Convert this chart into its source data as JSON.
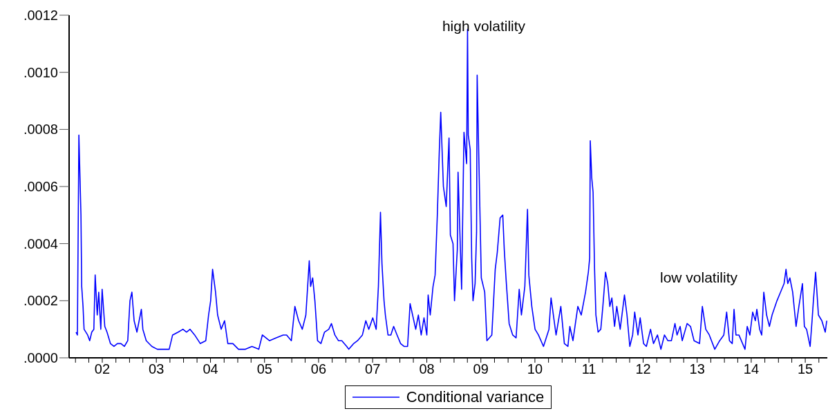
{
  "chart_data": {
    "type": "line",
    "legend": "bottom",
    "annotations": [
      "high volatility",
      "low volatility"
    ],
    "xlim": [
      "2001-11-19",
      "2015-11-27"
    ],
    "xticks": [
      {
        "value": "2002-01-01",
        "label": null
      },
      {
        "value": "2002-04-01",
        "label": null
      },
      {
        "value": "2002-07-01",
        "label": "02"
      },
      {
        "value": "2002-10-01",
        "label": null
      },
      {
        "value": "2003-01-01",
        "label": null
      },
      {
        "value": "2003-04-01",
        "label": null
      },
      {
        "value": "2003-07-01",
        "label": "03"
      },
      {
        "value": "2003-10-01",
        "label": null
      },
      {
        "value": "2004-01-01",
        "label": null
      },
      {
        "value": "2004-04-01",
        "label": null
      },
      {
        "value": "2004-07-01",
        "label": "04"
      },
      {
        "value": "2004-10-01",
        "label": null
      },
      {
        "value": "2005-01-01",
        "label": null
      },
      {
        "value": "2005-04-01",
        "label": null
      },
      {
        "value": "2005-07-01",
        "label": "05"
      },
      {
        "value": "2005-10-01",
        "label": null
      },
      {
        "value": "2006-01-01",
        "label": null
      },
      {
        "value": "2006-04-01",
        "label": null
      },
      {
        "value": "2006-07-01",
        "label": "06"
      },
      {
        "value": "2006-10-01",
        "label": null
      },
      {
        "value": "2007-01-01",
        "label": null
      },
      {
        "value": "2007-04-01",
        "label": null
      },
      {
        "value": "2007-07-01",
        "label": "07"
      },
      {
        "value": "2007-10-01",
        "label": null
      },
      {
        "value": "2008-01-01",
        "label": null
      },
      {
        "value": "2008-04-01",
        "label": null
      },
      {
        "value": "2008-07-01",
        "label": "08"
      },
      {
        "value": "2008-10-01",
        "label": null
      },
      {
        "value": "2009-01-01",
        "label": null
      },
      {
        "value": "2009-04-01",
        "label": null
      },
      {
        "value": "2009-07-01",
        "label": "09"
      },
      {
        "value": "2009-10-01",
        "label": null
      },
      {
        "value": "2010-01-01",
        "label": null
      },
      {
        "value": "2010-04-01",
        "label": null
      },
      {
        "value": "2010-07-01",
        "label": "10"
      },
      {
        "value": "2010-10-01",
        "label": null
      },
      {
        "value": "2011-01-01",
        "label": null
      },
      {
        "value": "2011-04-01",
        "label": null
      },
      {
        "value": "2011-07-01",
        "label": "11"
      },
      {
        "value": "2011-10-01",
        "label": null
      },
      {
        "value": "2012-01-01",
        "label": null
      },
      {
        "value": "2012-04-01",
        "label": null
      },
      {
        "value": "2012-07-01",
        "label": "12"
      },
      {
        "value": "2012-10-01",
        "label": null
      },
      {
        "value": "2013-01-01",
        "label": null
      },
      {
        "value": "2013-04-01",
        "label": null
      },
      {
        "value": "2013-07-01",
        "label": "13"
      },
      {
        "value": "2013-10-01",
        "label": null
      },
      {
        "value": "2014-01-01",
        "label": null
      },
      {
        "value": "2014-04-01",
        "label": null
      },
      {
        "value": "2014-07-01",
        "label": "14"
      },
      {
        "value": "2014-10-01",
        "label": null
      },
      {
        "value": "2015-01-01",
        "label": null
      },
      {
        "value": "2015-04-01",
        "label": null
      },
      {
        "value": "2015-07-01",
        "label": "15"
      },
      {
        "value": "2015-10-01",
        "label": null
      }
    ],
    "ylim": [
      0,
      0.0012
    ],
    "yticks": [
      {
        "value": 0,
        "label": ".0000"
      },
      {
        "value": 0.0002,
        "label": ".0002"
      },
      {
        "value": 0.0004,
        "label": ".0004"
      },
      {
        "value": 0.0006,
        "label": ".0006"
      },
      {
        "value": 0.0008,
        "label": ".0008"
      },
      {
        "value": 0.001,
        "label": ".0010"
      },
      {
        "value": 0.0012,
        "label": ".0012"
      }
    ],
    "series": [
      {
        "name": "Conditional variance",
        "color": "#0000ff",
        "x": [
          "2002-01-05",
          "2002-01-14",
          "2002-01-24",
          "2002-02-07",
          "2002-02-12",
          "2002-02-21",
          "2002-02-28",
          "2002-03-24",
          "2002-04-07",
          "2002-04-21",
          "2002-05-05",
          "2002-05-14",
          "2002-05-28",
          "2002-06-07",
          "2002-06-21",
          "2002-06-30",
          "2002-07-18",
          "2002-08-02",
          "2002-08-25",
          "2002-09-18",
          "2002-10-11",
          "2002-11-04",
          "2002-11-27",
          "2002-12-20",
          "2003-01-04",
          "2003-01-17",
          "2003-02-01",
          "2003-02-20",
          "2003-03-22",
          "2003-04-01",
          "2003-04-24",
          "2003-06-01",
          "2003-07-08",
          "2003-08-10",
          "2003-09-26",
          "2003-10-19",
          "2003-11-26",
          "2003-12-28",
          "2004-01-21",
          "2004-02-14",
          "2004-03-16",
          "2004-04-23",
          "2004-05-30",
          "2004-06-18",
          "2004-07-02",
          "2004-07-15",
          "2004-08-04",
          "2004-08-18",
          "2004-09-11",
          "2004-10-04",
          "2004-10-26",
          "2004-11-29",
          "2005-01-06",
          "2005-02-22",
          "2005-04-07",
          "2005-05-23",
          "2005-06-16",
          "2005-08-03",
          "2005-09-18",
          "2005-11-04",
          "2005-11-27",
          "2005-12-29",
          "2006-01-22",
          "2006-02-16",
          "2006-03-13",
          "2006-04-06",
          "2006-04-29",
          "2006-05-08",
          "2006-05-22",
          "2006-06-06",
          "2006-06-15",
          "2006-06-24",
          "2006-07-17",
          "2006-08-10",
          "2006-09-08",
          "2006-09-26",
          "2006-10-19",
          "2006-11-12",
          "2006-12-05",
          "2007-01-07",
          "2007-01-21",
          "2007-02-23",
          "2007-03-21",
          "2007-04-23",
          "2007-05-16",
          "2007-06-05",
          "2007-07-02",
          "2007-07-25",
          "2007-08-09",
          "2007-08-23",
          "2007-09-02",
          "2007-09-16",
          "2007-09-25",
          "2007-10-13",
          "2007-11-01",
          "2007-11-20",
          "2007-12-13",
          "2008-01-06",
          "2008-01-29",
          "2008-02-22",
          "2008-03-10",
          "2008-04-17",
          "2008-05-05",
          "2008-05-24",
          "2008-06-12",
          "2008-07-01",
          "2008-07-10",
          "2008-07-24",
          "2008-08-12",
          "2008-08-26",
          "2008-09-10",
          "2008-09-23",
          "2008-10-03",
          "2008-10-21",
          "2008-11-09",
          "2008-11-28",
          "2008-12-07",
          "2008-12-25",
          "2009-01-04",
          "2009-01-23",
          "2009-01-28",
          "2009-02-21",
          "2009-03-09",
          "2009-03-27",
          "2009-04-02",
          "2009-04-07",
          "2009-04-20",
          "2009-04-30",
          "2009-05-09",
          "2009-05-23",
          "2009-06-02",
          "2009-06-06",
          "2009-06-20",
          "2009-07-04",
          "2009-07-27",
          "2009-08-11",
          "2009-09-13",
          "2009-10-06",
          "2009-10-20",
          "2009-11-08",
          "2009-11-26",
          "2009-12-06",
          "2009-12-19",
          "2010-01-08",
          "2010-02-01",
          "2010-02-24",
          "2010-03-17",
          "2010-04-01",
          "2010-04-24",
          "2010-05-12",
          "2010-05-21",
          "2010-06-10",
          "2010-07-02",
          "2010-07-25",
          "2010-08-28",
          "2010-10-04",
          "2010-10-18",
          "2010-11-21",
          "2010-12-23",
          "2011-01-16",
          "2011-02-09",
          "2011-02-22",
          "2011-03-15",
          "2011-04-17",
          "2011-05-10",
          "2011-06-08",
          "2011-06-27",
          "2011-07-06",
          "2011-07-10",
          "2011-07-20",
          "2011-07-29",
          "2011-08-08",
          "2011-08-17",
          "2011-09-01",
          "2011-09-19",
          "2011-10-03",
          "2011-10-21",
          "2011-11-05",
          "2011-11-19",
          "2011-12-03",
          "2011-12-21",
          "2012-01-05",
          "2012-01-28",
          "2012-02-26",
          "2012-03-14",
          "2012-04-02",
          "2012-04-21",
          "2012-05-05",
          "2012-05-27",
          "2012-06-11",
          "2012-07-04",
          "2012-07-23",
          "2012-08-20",
          "2012-09-09",
          "2012-10-06",
          "2012-10-29",
          "2012-11-22",
          "2012-12-15",
          "2013-01-08",
          "2013-02-01",
          "2013-02-15",
          "2013-03-08",
          "2013-03-22",
          "2013-04-24",
          "2013-05-17",
          "2013-06-10",
          "2013-07-17",
          "2013-08-05",
          "2013-08-28",
          "2013-09-21",
          "2013-10-28",
          "2013-11-30",
          "2013-12-28",
          "2014-01-16",
          "2014-02-04",
          "2014-02-23",
          "2014-03-07",
          "2014-03-20",
          "2014-04-09",
          "2014-05-20",
          "2014-06-04",
          "2014-06-22",
          "2014-07-11",
          "2014-07-29",
          "2014-08-08",
          "2014-08-27",
          "2014-09-10",
          "2014-09-24",
          "2014-10-13",
          "2014-11-01",
          "2014-11-19",
          "2014-12-22",
          "2015-01-15",
          "2015-02-08",
          "2015-02-21",
          "2015-03-05",
          "2015-03-19",
          "2015-04-07",
          "2015-04-30",
          "2015-05-19",
          "2015-06-12",
          "2015-06-25",
          "2015-07-10",
          "2015-08-03",
          "2015-08-16",
          "2015-08-25",
          "2015-09-09",
          "2015-09-28",
          "2015-10-21",
          "2015-11-13",
          "2015-11-23"
        ],
        "values": [
          9e-05,
          8e-05,
          0.00078,
          0.0005,
          0.00025,
          0.00018,
          0.0001,
          8e-05,
          6e-05,
          9e-05,
          0.0001,
          0.00029,
          0.00015,
          0.00023,
          0.0001,
          0.00024,
          0.00011,
          9e-05,
          5e-05,
          4e-05,
          5e-05,
          5e-05,
          4e-05,
          6e-05,
          0.0002,
          0.00023,
          0.00013,
          9e-05,
          0.00017,
          0.0001,
          6e-05,
          4e-05,
          3e-05,
          3e-05,
          3e-05,
          8e-05,
          9e-05,
          0.0001,
          9e-05,
          0.0001,
          8e-05,
          5e-05,
          6e-05,
          0.00015,
          0.0002,
          0.00031,
          0.00023,
          0.00015,
          0.0001,
          0.00013,
          5e-05,
          5e-05,
          3e-05,
          3e-05,
          4e-05,
          3e-05,
          8e-05,
          6e-05,
          7e-05,
          8e-05,
          8e-05,
          6e-05,
          0.00018,
          0.00013,
          0.0001,
          0.00015,
          0.00034,
          0.00025,
          0.00028,
          0.0002,
          0.00013,
          6e-05,
          5e-05,
          9e-05,
          0.0001,
          0.00012,
          8e-05,
          6e-05,
          6e-05,
          4e-05,
          3e-05,
          5e-05,
          6e-05,
          8e-05,
          0.00013,
          0.0001,
          0.00014,
          0.0001,
          0.00025,
          0.00051,
          0.00033,
          0.0002,
          0.00015,
          8e-05,
          8e-05,
          0.00011,
          8e-05,
          5e-05,
          4e-05,
          4e-05,
          0.00019,
          0.0001,
          0.00015,
          8e-05,
          0.00014,
          8e-05,
          0.00022,
          0.00015,
          0.00025,
          0.00029,
          0.0005,
          0.00072,
          0.00086,
          0.0006,
          0.00053,
          0.00077,
          0.00043,
          0.0004,
          0.0002,
          0.00038,
          0.00065,
          0.00024,
          0.00079,
          0.00068,
          0.00115,
          0.00078,
          0.00073,
          0.00035,
          0.0002,
          0.00026,
          0.00044,
          0.00099,
          0.00063,
          0.00028,
          0.00023,
          6e-05,
          8e-05,
          0.00031,
          0.00037,
          0.00049,
          0.0005,
          0.00038,
          0.00027,
          0.00012,
          8e-05,
          7e-05,
          0.00024,
          0.00015,
          0.00025,
          0.00052,
          0.00029,
          0.00018,
          0.0001,
          8e-05,
          4e-05,
          0.0001,
          0.00021,
          8e-05,
          0.00018,
          5e-05,
          4e-05,
          0.00011,
          6e-05,
          0.00018,
          0.00015,
          0.00023,
          0.0003,
          0.00035,
          0.00076,
          0.00063,
          0.00058,
          0.00031,
          0.00015,
          9e-05,
          0.0001,
          0.00018,
          0.0003,
          0.00026,
          0.00018,
          0.00021,
          0.00011,
          0.00018,
          0.0001,
          0.00022,
          0.00015,
          4e-05,
          8e-05,
          0.00016,
          8e-05,
          0.00014,
          5e-05,
          4e-05,
          0.0001,
          5e-05,
          8e-05,
          3e-05,
          8e-05,
          6e-05,
          6e-05,
          0.00012,
          8e-05,
          0.00011,
          6e-05,
          0.00012,
          0.00011,
          6e-05,
          5e-05,
          0.00018,
          0.0001,
          8e-05,
          3e-05,
          6e-05,
          8e-05,
          0.00016,
          6e-05,
          5e-05,
          0.00017,
          8e-05,
          8e-05,
          3e-05,
          0.00011,
          8e-05,
          0.00016,
          0.00013,
          0.00017,
          0.0001,
          8e-05,
          0.00023,
          0.00015,
          0.00011,
          0.00015,
          0.0002,
          0.00023,
          0.00026,
          0.00031,
          0.00026,
          0.00028,
          0.00023,
          0.00011,
          0.00018,
          0.00026,
          0.00011,
          0.0001,
          4e-05,
          0.00013,
          0.0002,
          0.0003,
          0.00015,
          0.00013,
          9e-05,
          0.00013
        ]
      }
    ]
  }
}
